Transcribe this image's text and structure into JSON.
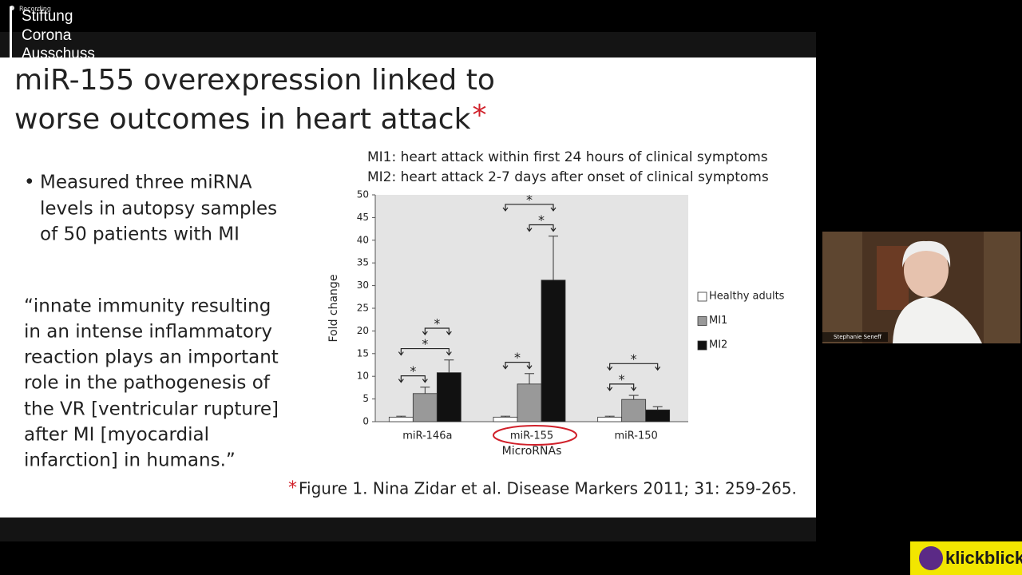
{
  "overlay": {
    "recording": "Recording",
    "brand": [
      "Stiftung",
      "Corona",
      "Ausschuss"
    ]
  },
  "slide": {
    "title": [
      "miR-155 overexpression linked to",
      "worse outcomes in heart attack"
    ],
    "title_mark": "*",
    "bullet": [
      "Measured three miRNA",
      "levels in autopsy samples",
      "of 50 patients with MI"
    ],
    "quote": [
      "“innate immunity resulting",
      "in an intense inflammatory",
      "reaction plays an important",
      "role in the pathogenesis of",
      "the VR [ventricular rupture]",
      "after MI [myocardial",
      "infarction] in humans.”"
    ],
    "notes": [
      "MI1: heart attack within first 24 hours of clinical symptoms",
      "MI2: heart attack 2-7 days after onset of clinical symptoms"
    ],
    "citation_mark": "*",
    "citation": "Figure 1. Nina Zidar et al. Disease Markers 2011; 31: 259-265."
  },
  "chart_data": {
    "type": "bar",
    "categories": [
      "miR-146a",
      "miR-155",
      "miR-150"
    ],
    "series": [
      {
        "name": "Healthy adults",
        "color": "#ffffff",
        "values": [
          1.0,
          1.0,
          1.0
        ],
        "errors": [
          0.2,
          0.2,
          0.2
        ]
      },
      {
        "name": "MI1",
        "color": "#999999",
        "values": [
          6.2,
          8.3,
          4.9
        ],
        "errors": [
          1.4,
          2.3,
          0.9
        ]
      },
      {
        "name": "MI2",
        "color": "#111111",
        "values": [
          10.8,
          31.2,
          2.6
        ],
        "errors": [
          2.8,
          9.7,
          0.7
        ]
      }
    ],
    "ylim": [
      0,
      50
    ],
    "yticks": [
      0,
      5,
      10,
      15,
      20,
      25,
      30,
      35,
      40,
      45,
      50
    ],
    "xlabel": "MicroRNAs",
    "ylabel": "Fold change",
    "significance": [
      {
        "category": "miR-146a",
        "from": "Healthy adults",
        "to": "MI1",
        "label": "*"
      },
      {
        "category": "miR-146a",
        "from": "Healthy adults",
        "to": "MI2",
        "label": "*"
      },
      {
        "category": "miR-146a",
        "from": "MI1",
        "to": "MI2",
        "label": "*"
      },
      {
        "category": "miR-155",
        "from": "Healthy adults",
        "to": "MI1",
        "label": "*"
      },
      {
        "category": "miR-155",
        "from": "MI1",
        "to": "MI2",
        "label": "*"
      },
      {
        "category": "miR-155",
        "from": "Healthy adults",
        "to": "MI2",
        "label": "*"
      },
      {
        "category": "miR-150",
        "from": "Healthy adults",
        "to": "MI1",
        "label": "*"
      },
      {
        "category": "miR-150",
        "from": "Healthy adults",
        "to": "MI2",
        "label": "*"
      }
    ],
    "highlight": "miR-155"
  },
  "participant": {
    "name": "Stephanie Seneff"
  },
  "logo": {
    "text": "klickblick"
  }
}
